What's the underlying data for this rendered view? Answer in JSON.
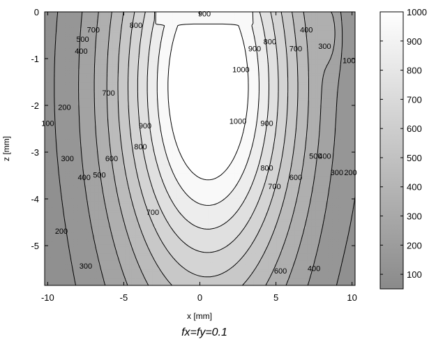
{
  "chart_data": {
    "type": "contour",
    "caption": "fx=fy=0.1",
    "xlabel": "x [mm]",
    "ylabel": "z [mm]",
    "xlim": [
      -10.2,
      10.2
    ],
    "ylim": [
      -5.85,
      0
    ],
    "x_ticks": [
      "-10",
      "-5",
      "0",
      "5",
      "10"
    ],
    "y_ticks": [
      "0",
      "-1",
      "-2",
      "-3",
      "-4",
      "-5"
    ],
    "colorbar": {
      "range": [
        50,
        1000
      ],
      "ticks": [
        "100",
        "200",
        "300",
        "400",
        "500",
        "600",
        "700",
        "800",
        "900",
        "1000"
      ],
      "colormap": "gray"
    },
    "contour_levels": [
      100,
      200,
      300,
      400,
      500,
      600,
      700,
      800,
      900,
      1000
    ],
    "contour_labels": [
      {
        "text": "900",
        "x": 0.3,
        "z": -0.05
      },
      {
        "text": "800",
        "x": -4.2,
        "z": -0.3
      },
      {
        "text": "700",
        "x": -7.0,
        "z": -0.4
      },
      {
        "text": "500",
        "x": -7.7,
        "z": -0.6
      },
      {
        "text": "400",
        "x": -7.8,
        "z": -0.85
      },
      {
        "text": "1000",
        "x": 2.7,
        "z": -1.25
      },
      {
        "text": "900",
        "x": 3.6,
        "z": -0.8
      },
      {
        "text": "800",
        "x": 4.6,
        "z": -0.65
      },
      {
        "text": "700",
        "x": 6.3,
        "z": -0.8
      },
      {
        "text": "400",
        "x": 7.0,
        "z": -0.4
      },
      {
        "text": "300",
        "x": 8.2,
        "z": -0.75
      },
      {
        "text": "100",
        "x": 9.8,
        "z": -1.05
      },
      {
        "text": "700",
        "x": -6.0,
        "z": -1.75
      },
      {
        "text": "200",
        "x": -8.9,
        "z": -2.05
      },
      {
        "text": "100",
        "x": -10.0,
        "z": -2.4
      },
      {
        "text": "900",
        "x": -3.6,
        "z": -2.45
      },
      {
        "text": "1000",
        "x": 2.5,
        "z": -2.35
      },
      {
        "text": "900",
        "x": 4.4,
        "z": -2.4
      },
      {
        "text": "800",
        "x": -3.9,
        "z": -2.9
      },
      {
        "text": "600",
        "x": -5.8,
        "z": -3.15
      },
      {
        "text": "500",
        "x": -6.6,
        "z": -3.5
      },
      {
        "text": "400",
        "x": -7.6,
        "z": -3.55
      },
      {
        "text": "300",
        "x": -8.7,
        "z": -3.15
      },
      {
        "text": "800",
        "x": 4.4,
        "z": -3.35
      },
      {
        "text": "700",
        "x": 4.9,
        "z": -3.75
      },
      {
        "text": "600",
        "x": 6.3,
        "z": -3.55
      },
      {
        "text": "500",
        "x": 7.6,
        "z": -3.1
      },
      {
        "text": "400",
        "x": 8.2,
        "z": -3.1
      },
      {
        "text": "300",
        "x": 9.0,
        "z": -3.45
      },
      {
        "text": "200",
        "x": 9.9,
        "z": -3.45
      },
      {
        "text": "700",
        "x": -3.1,
        "z": -4.3
      },
      {
        "text": "200",
        "x": -9.1,
        "z": -4.7
      },
      {
        "text": "300",
        "x": -7.5,
        "z": -5.45
      },
      {
        "text": "600",
        "x": 5.3,
        "z": -5.55
      },
      {
        "text": "400",
        "x": 7.5,
        "z": -5.5
      }
    ]
  }
}
